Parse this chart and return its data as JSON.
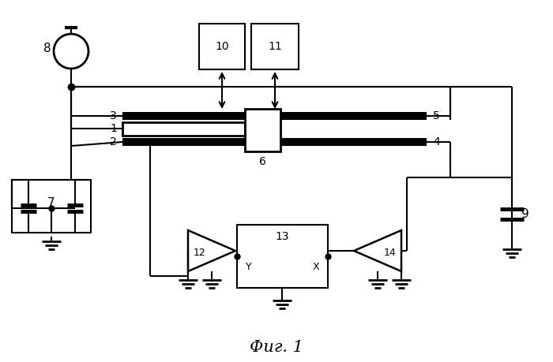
{
  "title": "Фиг. 1",
  "title_fontsize": 15,
  "bg_color": "#ffffff",
  "line_color": "#000000",
  "lw": 1.5,
  "tlw": 5.0
}
